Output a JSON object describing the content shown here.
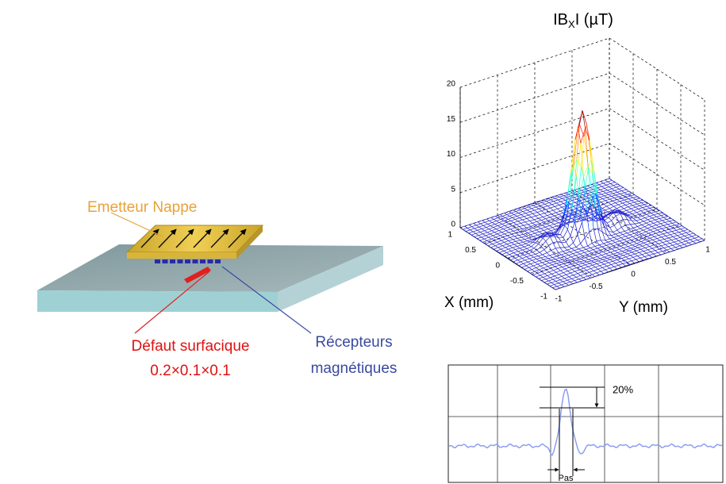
{
  "diagram": {
    "emitter_label": "Emetteur Nappe",
    "defect_label": [
      "Défaut surfacique",
      "0.2×0.1×0.1"
    ],
    "receiver_label": [
      "Récepteurs",
      "magnétiques"
    ]
  },
  "surface_plot": {
    "title_main": "IB",
    "title_sub": "X",
    "title_unit": "I (µT)",
    "z_ticks": [
      0,
      5,
      10,
      15,
      20
    ],
    "x_label": "X (mm)",
    "x_ticks": [
      1,
      0.5,
      0,
      -0.5,
      -1
    ],
    "y_label": "Y (mm)",
    "y_ticks": [
      -1,
      -0.5,
      0,
      0.5,
      1
    ]
  },
  "profile_plot": {
    "annotation": "20%",
    "step_label": "Pas"
  }
}
